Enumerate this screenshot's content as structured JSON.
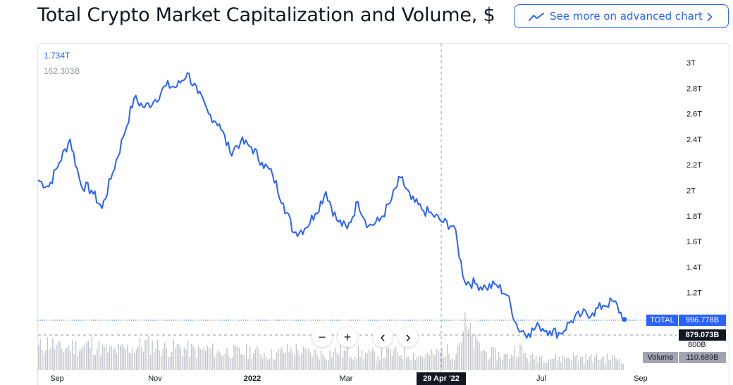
{
  "header": {
    "title": "Total Crypto Market Capitalization and Volume, $",
    "advanced_chart_label": "See more on advanced chart"
  },
  "legend": {
    "main_value": "1.734T",
    "volume_value": "162.303B"
  },
  "price_tags": {
    "total_label": "TOTAL",
    "total_value": "996.778B",
    "crosshair_value": "879.073B",
    "partial_label": "800B",
    "volume_label": "Volume",
    "volume_value": "110.689B"
  },
  "crosshair": {
    "date_label": "29 Apr '22"
  },
  "zoom": {
    "zoom_out": "−",
    "zoom_in": "+",
    "scroll_left": "‹",
    "scroll_right": "›"
  },
  "colors": {
    "line": "#2962ff",
    "volume": "#c3c5cb",
    "text": "#131722",
    "axis_text": "#131722",
    "grid": "#e0e3eb",
    "accent": "#2962ff"
  },
  "chart_data": {
    "type": "line",
    "title": "Total Crypto Market Capitalization and Volume, $",
    "xlabel": "",
    "ylabel": "",
    "x_ticks": [
      "Sep",
      "Nov",
      "2022",
      "Mar",
      "Jul",
      "Sep"
    ],
    "y_ticks": [
      "3T",
      "2.8T",
      "2.6T",
      "2.4T",
      "2.2T",
      "2T",
      "1.8T",
      "1.6T",
      "1.4T",
      "1.2T"
    ],
    "ylim": [
      0.78,
      3.07
    ],
    "x": [
      "2021-08-01",
      "2021-08-08",
      "2021-08-15",
      "2021-08-22",
      "2021-08-29",
      "2021-09-05",
      "2021-09-12",
      "2021-09-19",
      "2021-09-26",
      "2021-10-03",
      "2021-10-10",
      "2021-10-17",
      "2021-10-24",
      "2021-10-31",
      "2021-11-07",
      "2021-11-14",
      "2021-11-21",
      "2021-11-28",
      "2021-12-05",
      "2021-12-12",
      "2021-12-19",
      "2021-12-26",
      "2022-01-02",
      "2022-01-09",
      "2022-01-16",
      "2022-01-23",
      "2022-01-30",
      "2022-02-06",
      "2022-02-13",
      "2022-02-20",
      "2022-02-27",
      "2022-03-06",
      "2022-03-13",
      "2022-03-20",
      "2022-03-27",
      "2022-04-03",
      "2022-04-10",
      "2022-04-17",
      "2022-04-24",
      "2022-05-01",
      "2022-05-08",
      "2022-05-15",
      "2022-05-22",
      "2022-05-29",
      "2022-06-05",
      "2022-06-12",
      "2022-06-19",
      "2022-06-26",
      "2022-07-03",
      "2022-07-10",
      "2022-07-17",
      "2022-07-24",
      "2022-07-31",
      "2022-08-07",
      "2022-08-14",
      "2022-08-21"
    ],
    "series": [
      {
        "values": [
          2.08,
          2.03,
          2.22,
          2.4,
          2.05,
          2.0,
          1.86,
          2.14,
          2.42,
          2.72,
          2.65,
          2.71,
          2.82,
          2.81,
          2.92,
          2.76,
          2.6,
          2.52,
          2.3,
          2.38,
          2.34,
          2.22,
          2.12,
          1.9,
          1.67,
          1.7,
          1.82,
          1.99,
          1.77,
          1.7,
          1.91,
          1.72,
          1.76,
          1.9,
          2.1,
          1.93,
          1.85,
          1.81,
          1.75,
          1.72,
          1.29,
          1.27,
          1.24,
          1.26,
          1.18,
          0.92,
          0.88,
          0.94,
          0.9,
          0.88,
          0.98,
          1.03,
          1.04,
          1.1,
          1.13,
          0.99
        ]
      },
      {
        "name": "Volume",
        "values": [
          0.13,
          0.16,
          0.12,
          0.14,
          0.13,
          0.15,
          0.12,
          0.11,
          0.12,
          0.13,
          0.15,
          0.14,
          0.12,
          0.13,
          0.12,
          0.11,
          0.12,
          0.1,
          0.11,
          0.1,
          0.11,
          0.1,
          0.09,
          0.11,
          0.12,
          0.1,
          0.1,
          0.09,
          0.11,
          0.1,
          0.1,
          0.09,
          0.09,
          0.1,
          0.1,
          0.09,
          0.08,
          0.09,
          0.11,
          0.1,
          0.25,
          0.15,
          0.1,
          0.09,
          0.08,
          0.13,
          0.07,
          0.08,
          0.07,
          0.07,
          0.08,
          0.07,
          0.07,
          0.07,
          0.07,
          0.06
        ]
      }
    ],
    "grid": false,
    "legend": "top-left"
  }
}
